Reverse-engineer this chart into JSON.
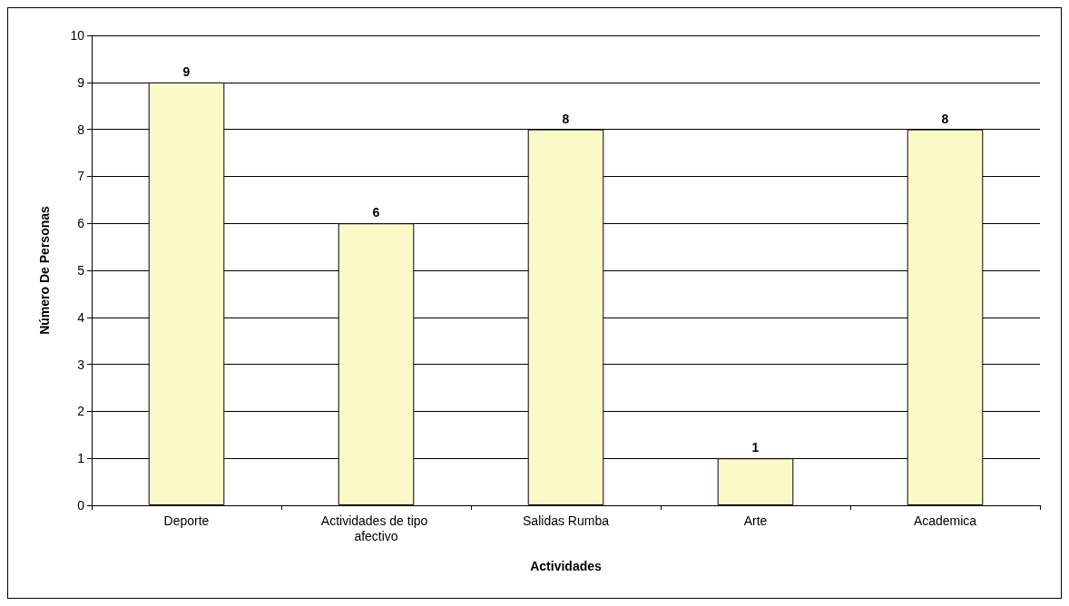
{
  "chart_data": {
    "type": "bar",
    "xlabel": "Actividades",
    "ylabel": "Número De Personas",
    "categories": [
      "Deporte",
      "Actividades de tipo afectivo",
      "Salidas Rumba",
      "Arte",
      "Academica"
    ],
    "values": [
      9,
      6,
      8,
      1,
      8
    ],
    "color": "#fcf9c8",
    "ylim": [
      0,
      10
    ],
    "yticks": [
      0,
      1,
      2,
      3,
      4,
      5,
      6,
      7,
      8,
      9,
      10
    ],
    "grid": "y",
    "data_labels": true
  }
}
